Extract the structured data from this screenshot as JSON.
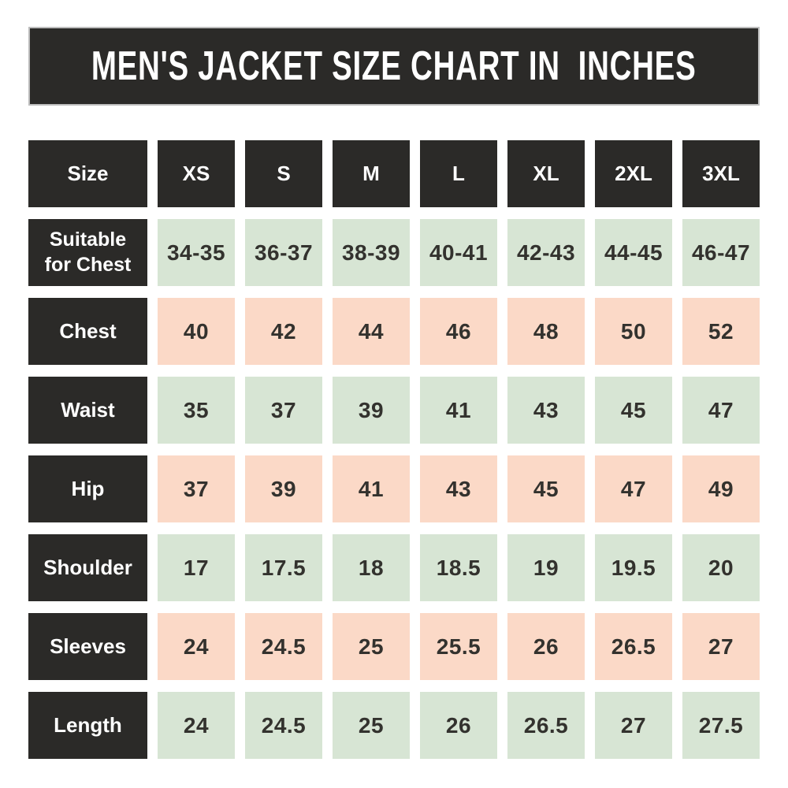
{
  "title": "MEN'S JACKET SIZE CHART IN  INCHES",
  "colors": {
    "dark_cell": "#2b2a28",
    "green_cell": "#d7e5d4",
    "pink_cell": "#fbd9c7",
    "banner_border": "#bdbdbd",
    "text_light": "#ffffff",
    "text_dark": "#33322e",
    "background": "#ffffff"
  },
  "table": {
    "header": {
      "label": "Size",
      "sizes": [
        "XS",
        "S",
        "M",
        "L",
        "XL",
        "2XL",
        "3XL"
      ]
    },
    "rows": [
      {
        "label": "Suitable for Chest",
        "tint": "green",
        "values": [
          "34-35",
          "36-37",
          "38-39",
          "40-41",
          "42-43",
          "44-45",
          "46-47"
        ]
      },
      {
        "label": "Chest",
        "tint": "pink",
        "values": [
          "40",
          "42",
          "44",
          "46",
          "48",
          "50",
          "52"
        ]
      },
      {
        "label": "Waist",
        "tint": "green",
        "values": [
          "35",
          "37",
          "39",
          "41",
          "43",
          "45",
          "47"
        ]
      },
      {
        "label": "Hip",
        "tint": "pink",
        "values": [
          "37",
          "39",
          "41",
          "43",
          "45",
          "47",
          "49"
        ]
      },
      {
        "label": "Shoulder",
        "tint": "green",
        "values": [
          "17",
          "17.5",
          "18",
          "18.5",
          "19",
          "19.5",
          "20"
        ]
      },
      {
        "label": "Sleeves",
        "tint": "pink",
        "values": [
          "24",
          "24.5",
          "25",
          "25.5",
          "26",
          "26.5",
          "27"
        ]
      },
      {
        "label": "Length",
        "tint": "green",
        "values": [
          "24",
          "24.5",
          "25",
          "26",
          "26.5",
          "27",
          "27.5"
        ]
      }
    ]
  },
  "chart_data": {
    "type": "table",
    "title": "MEN'S JACKET SIZE CHART IN  INCHES",
    "columns": [
      "Size",
      "XS",
      "S",
      "M",
      "L",
      "XL",
      "2XL",
      "3XL"
    ],
    "rows": [
      [
        "Suitable for Chest",
        "34-35",
        "36-37",
        "38-39",
        "40-41",
        "42-43",
        "44-45",
        "46-47"
      ],
      [
        "Chest",
        "40",
        "42",
        "44",
        "46",
        "48",
        "50",
        "52"
      ],
      [
        "Waist",
        "35",
        "37",
        "39",
        "41",
        "43",
        "45",
        "47"
      ],
      [
        "Hip",
        "37",
        "39",
        "41",
        "43",
        "45",
        "47",
        "49"
      ],
      [
        "Shoulder",
        "17",
        "17.5",
        "18",
        "18.5",
        "19",
        "19.5",
        "20"
      ],
      [
        "Sleeves",
        "24",
        "24.5",
        "25",
        "25.5",
        "26",
        "26.5",
        "27"
      ],
      [
        "Length",
        "24",
        "24.5",
        "25",
        "26",
        "26.5",
        "27",
        "27.5"
      ]
    ],
    "layout_hints": {
      "header_style": "dark",
      "row_tints_alternate": [
        "green",
        "pink"
      ],
      "cell_gaps": true
    }
  }
}
